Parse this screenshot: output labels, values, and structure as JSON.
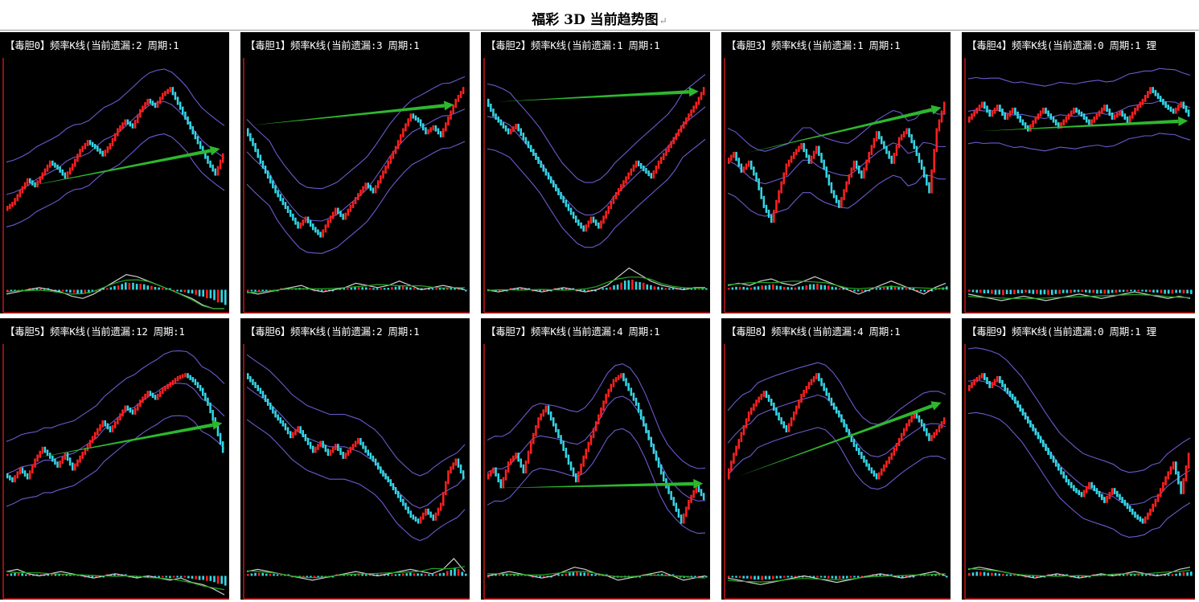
{
  "page": {
    "title": "福彩 3D 当前趋势图",
    "paragraph_mark": "↵"
  },
  "colors": {
    "background": "#000000",
    "border": "#c01818",
    "candle_up": "#ff2020",
    "candle_down": "#33d6e6",
    "band": "#6a5acd",
    "trend_arrow": "#2db82d",
    "signal_line": "#22aa22",
    "osc_line": "#cfcfcf"
  },
  "chart_data": [
    {
      "type": "candlestick",
      "header": "【毒胆0】频率K线(当前遗漏:2 周期:1",
      "trend": "up",
      "price_path": [
        0.18,
        0.22,
        0.3,
        0.38,
        0.34,
        0.42,
        0.5,
        0.46,
        0.4,
        0.48,
        0.58,
        0.64,
        0.6,
        0.55,
        0.62,
        0.72,
        0.78,
        0.74,
        0.85,
        0.92,
        0.88,
        0.96,
        1.0,
        0.9,
        0.8,
        0.7,
        0.6,
        0.5,
        0.42,
        0.55
      ],
      "arrow": {
        "from": [
          0.08,
          0.32
        ],
        "to": [
          0.98,
          0.58
        ]
      },
      "macd": [
        -0.1,
        -0.05,
        0.0,
        0.05,
        0.0,
        -0.05,
        -0.15,
        -0.2,
        -0.1,
        0.05,
        0.2,
        0.35,
        0.3,
        0.2,
        0.1,
        0.0,
        -0.1,
        -0.2,
        -0.35,
        -0.5,
        -0.7
      ]
    },
    {
      "type": "candlestick",
      "header": "【毒胆1】频率K线(当前遗漏:3 周期:1",
      "trend": "up",
      "price_path": [
        0.72,
        0.62,
        0.5,
        0.4,
        0.3,
        0.22,
        0.14,
        0.06,
        0.12,
        0.05,
        0.0,
        0.1,
        0.18,
        0.12,
        0.2,
        0.28,
        0.35,
        0.3,
        0.4,
        0.5,
        0.6,
        0.72,
        0.82,
        0.78,
        0.7,
        0.74,
        0.68,
        0.8,
        0.92,
        1.0
      ],
      "arrow": {
        "from": [
          0.02,
          0.74
        ],
        "to": [
          0.95,
          0.88
        ]
      },
      "macd": [
        -0.05,
        -0.1,
        -0.05,
        0.0,
        0.05,
        0.1,
        0.0,
        -0.05,
        0.0,
        0.05,
        0.15,
        0.1,
        0.05,
        0.1,
        0.2,
        0.1,
        0.0,
        0.05,
        0.1,
        0.05,
        0.0
      ]
    },
    {
      "type": "candlestick",
      "header": "【毒胆2】频率K线(当前遗漏:1 周期:1",
      "trend": "up",
      "price_path": [
        0.92,
        0.82,
        0.76,
        0.7,
        0.75,
        0.66,
        0.58,
        0.5,
        0.42,
        0.34,
        0.26,
        0.18,
        0.1,
        0.04,
        0.12,
        0.06,
        0.16,
        0.26,
        0.34,
        0.42,
        0.5,
        0.45,
        0.4,
        0.5,
        0.58,
        0.66,
        0.74,
        0.82,
        0.9,
        1.0
      ],
      "arrow": {
        "from": [
          0.05,
          0.9
        ],
        "to": [
          0.97,
          0.97
        ]
      },
      "macd": [
        0.0,
        -0.05,
        0.0,
        0.05,
        0.0,
        -0.05,
        0.0,
        0.05,
        0.0,
        -0.05,
        0.0,
        0.1,
        0.3,
        0.5,
        0.35,
        0.2,
        0.1,
        0.05,
        0.0,
        0.05,
        0.05
      ]
    },
    {
      "type": "candlestick",
      "header": "【毒胆3】频率K线(当前遗漏:1 周期:1",
      "trend": "up",
      "price_path": [
        0.5,
        0.56,
        0.44,
        0.5,
        0.38,
        0.2,
        0.1,
        0.3,
        0.48,
        0.56,
        0.62,
        0.5,
        0.6,
        0.46,
        0.3,
        0.2,
        0.36,
        0.5,
        0.4,
        0.56,
        0.7,
        0.6,
        0.5,
        0.66,
        0.72,
        0.6,
        0.46,
        0.3,
        0.72,
        0.9
      ],
      "arrow": {
        "from": [
          0.08,
          0.55
        ],
        "to": [
          0.98,
          0.86
        ]
      },
      "macd": [
        0.1,
        0.15,
        0.1,
        0.2,
        0.25,
        0.15,
        0.1,
        0.2,
        0.3,
        0.2,
        0.1,
        0.0,
        -0.1,
        0.0,
        0.1,
        0.2,
        0.1,
        0.0,
        -0.1,
        0.05,
        0.15
      ]
    },
    {
      "type": "candlestick",
      "header": "【毒胆4】频率K线(当前遗漏:0 周期:1 理",
      "trend": "flat",
      "price_path": [
        0.78,
        0.84,
        0.9,
        0.82,
        0.88,
        0.8,
        0.86,
        0.78,
        0.72,
        0.8,
        0.86,
        0.8,
        0.74,
        0.8,
        0.86,
        0.82,
        0.76,
        0.82,
        0.88,
        0.8,
        0.84,
        0.78,
        0.86,
        0.92,
        1.0,
        0.94,
        0.88,
        0.84,
        0.9,
        0.82
      ],
      "arrow": {
        "from": [
          0.05,
          0.7
        ],
        "to": [
          0.99,
          0.77
        ]
      },
      "macd": [
        -0.1,
        -0.15,
        -0.2,
        -0.25,
        -0.2,
        -0.15,
        -0.2,
        -0.25,
        -0.2,
        -0.15,
        -0.1,
        -0.15,
        -0.2,
        -0.15,
        -0.1,
        -0.05,
        -0.1,
        -0.15,
        -0.2,
        -0.15,
        -0.2
      ]
    },
    {
      "type": "candlestick",
      "header": "【毒胆5】频率K线(当前遗漏:12 周期:1",
      "trend": "up",
      "price_path": [
        0.32,
        0.28,
        0.36,
        0.3,
        0.42,
        0.5,
        0.44,
        0.38,
        0.46,
        0.36,
        0.44,
        0.52,
        0.6,
        0.68,
        0.62,
        0.7,
        0.78,
        0.74,
        0.82,
        0.88,
        0.84,
        0.9,
        0.94,
        0.98,
        1.0,
        0.96,
        0.9,
        0.8,
        0.65,
        0.48
      ],
      "arrow": {
        "from": [
          0.12,
          0.42
        ],
        "to": [
          0.99,
          0.66
        ]
      },
      "macd": [
        0.1,
        0.15,
        0.05,
        0.0,
        0.05,
        0.1,
        0.05,
        0.0,
        -0.05,
        0.0,
        0.05,
        0.0,
        -0.05,
        0.0,
        -0.05,
        -0.1,
        -0.05,
        -0.15,
        -0.2,
        -0.3,
        -0.45
      ]
    },
    {
      "type": "candlestick",
      "header": "【毒胆6】频率K线(当前遗漏:2 周期:1",
      "trend": "down",
      "price_path": [
        1.0,
        0.94,
        0.88,
        0.8,
        0.72,
        0.66,
        0.58,
        0.64,
        0.56,
        0.48,
        0.54,
        0.46,
        0.52,
        0.44,
        0.5,
        0.56,
        0.48,
        0.42,
        0.34,
        0.28,
        0.2,
        0.12,
        0.04,
        0.0,
        0.08,
        0.02,
        0.12,
        0.34,
        0.42,
        0.3
      ],
      "arrow": null,
      "macd": [
        0.1,
        0.15,
        0.1,
        0.05,
        0.0,
        -0.05,
        -0.1,
        -0.05,
        0.0,
        0.05,
        0.1,
        0.05,
        0.0,
        0.05,
        0.1,
        0.15,
        0.1,
        0.05,
        0.15,
        0.4,
        0.1
      ]
    },
    {
      "type": "candlestick",
      "header": "【毒胆7】频率K线(当前遗漏:4 周期:1",
      "trend": "flat",
      "price_path": [
        0.3,
        0.36,
        0.24,
        0.4,
        0.46,
        0.34,
        0.54,
        0.7,
        0.78,
        0.66,
        0.54,
        0.4,
        0.28,
        0.44,
        0.58,
        0.72,
        0.86,
        0.96,
        1.0,
        0.9,
        0.8,
        0.66,
        0.52,
        0.38,
        0.24,
        0.12,
        0.0,
        0.14,
        0.24,
        0.16
      ],
      "arrow": {
        "from": [
          0.05,
          0.22
        ],
        "to": [
          0.99,
          0.25
        ]
      },
      "macd": [
        0.0,
        0.05,
        0.1,
        0.05,
        0.0,
        -0.05,
        0.0,
        0.1,
        0.2,
        0.15,
        0.05,
        0.0,
        -0.1,
        -0.05,
        0.0,
        0.05,
        0.1,
        0.0,
        -0.1,
        -0.05,
        0.0
      ]
    },
    {
      "type": "candlestick",
      "header": "【毒胆8】频率K线(当前遗漏:4 周期:1",
      "trend": "up",
      "price_path": [
        0.3,
        0.46,
        0.6,
        0.74,
        0.82,
        0.88,
        0.8,
        0.7,
        0.62,
        0.74,
        0.86,
        0.94,
        1.0,
        0.9,
        0.8,
        0.72,
        0.62,
        0.52,
        0.44,
        0.36,
        0.3,
        0.38,
        0.46,
        0.56,
        0.66,
        0.74,
        0.66,
        0.56,
        0.62,
        0.7
      ],
      "arrow": {
        "from": [
          0.05,
          0.3
        ],
        "to": [
          0.98,
          0.8
        ]
      },
      "macd": [
        -0.05,
        -0.1,
        -0.15,
        -0.2,
        -0.15,
        -0.1,
        -0.05,
        0.0,
        -0.05,
        -0.1,
        -0.15,
        -0.1,
        -0.05,
        0.0,
        0.05,
        0.0,
        -0.05,
        0.0,
        0.05,
        0.1,
        0.0
      ]
    },
    {
      "type": "candlestick",
      "header": "【毒胆9】频率K线(当前遗漏:0 周期:1 理",
      "trend": "down",
      "price_path": [
        0.9,
        0.96,
        1.0,
        0.92,
        0.98,
        0.9,
        0.84,
        0.76,
        0.68,
        0.6,
        0.52,
        0.44,
        0.36,
        0.28,
        0.22,
        0.18,
        0.26,
        0.2,
        0.14,
        0.22,
        0.16,
        0.1,
        0.04,
        0.0,
        0.08,
        0.18,
        0.3,
        0.4,
        0.2,
        0.46
      ],
      "arrow": null,
      "macd": [
        0.15,
        0.2,
        0.15,
        0.1,
        0.05,
        0.0,
        -0.05,
        0.0,
        0.05,
        0.0,
        -0.05,
        0.0,
        0.05,
        0.0,
        0.05,
        0.1,
        0.05,
        0.0,
        0.05,
        0.15,
        0.2
      ]
    }
  ]
}
